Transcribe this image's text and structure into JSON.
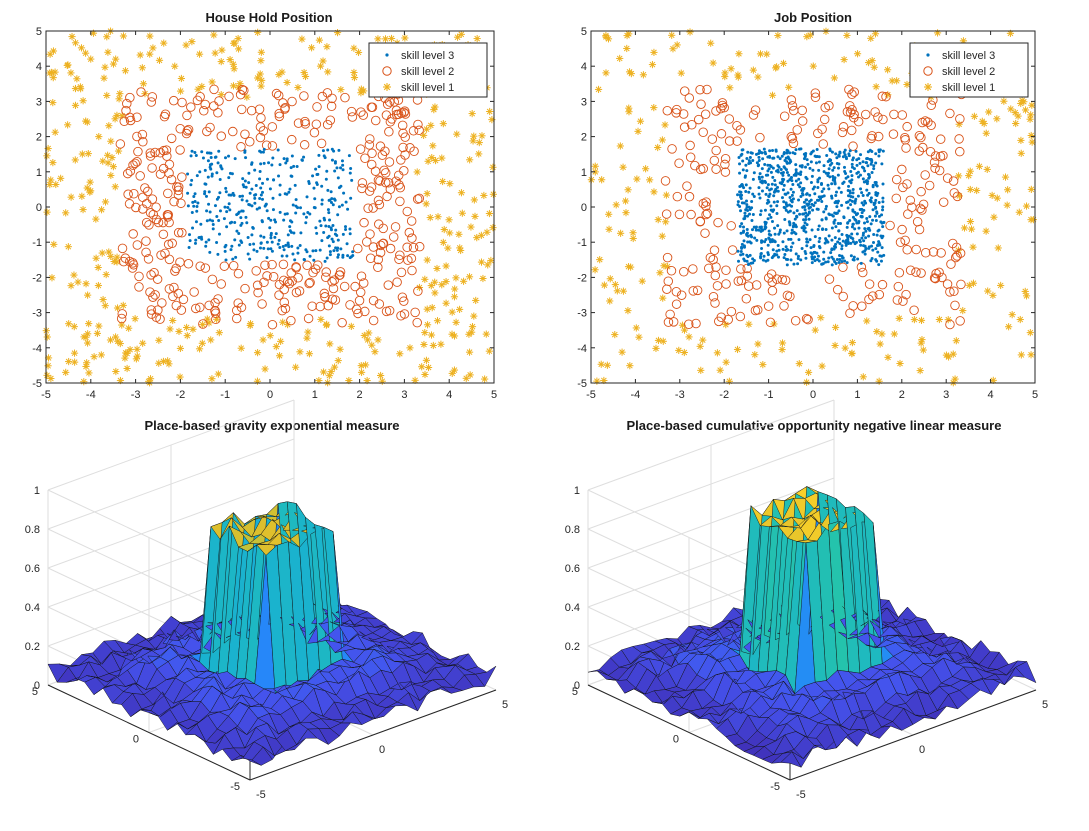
{
  "chart_data": [
    {
      "type": "scatter",
      "title": "House Hold Position",
      "xlim": [
        -5,
        5
      ],
      "ylim": [
        -5,
        5
      ],
      "xticks": [
        "-5",
        "-4",
        "-3",
        "-2",
        "-1",
        "0",
        "1",
        "2",
        "3",
        "4",
        "5"
      ],
      "yticks": [
        "-5",
        "-4",
        "-3",
        "-2",
        "-1",
        "0",
        "1",
        "2",
        "3",
        "4",
        "5"
      ],
      "legend_position": "top-right",
      "grid": false,
      "series": [
        {
          "name": "skill level 3",
          "marker": "dot",
          "color": "#0072BD",
          "n_points": 400,
          "region": "uniform in box x∈[-1.9,1.9], y∈[-1.5,1.6]"
        },
        {
          "name": "skill level 2",
          "marker": "circle",
          "color": "#D95319",
          "n_points": 380,
          "region": "ring |x|,|y| up to ~3.3 around skill level 3 box"
        },
        {
          "name": "skill level 1",
          "marker": "asterisk",
          "color": "#EDB120",
          "n_points": 400,
          "region": "outer area up to ±5 outside ~3.3"
        }
      ]
    },
    {
      "type": "scatter",
      "title": "Job Position",
      "xlim": [
        -5,
        5
      ],
      "ylim": [
        -5,
        5
      ],
      "xticks": [
        "-5",
        "-4",
        "-3",
        "-2",
        "-1",
        "0",
        "1",
        "2",
        "3",
        "4",
        "5"
      ],
      "yticks": [
        "-5",
        "-4",
        "-3",
        "-2",
        "-1",
        "0",
        "1",
        "2",
        "3",
        "4",
        "5"
      ],
      "legend_position": "top-right",
      "grid": false,
      "series": [
        {
          "name": "skill level 3",
          "marker": "dot",
          "color": "#0072BD",
          "n_points": 900,
          "region": "uniform in box x∈[-1.7,1.6], y∈[-1.6,1.6]"
        },
        {
          "name": "skill level 2",
          "marker": "circle",
          "color": "#D95319",
          "n_points": 260,
          "region": "ring around skill level 3 box out to ~3.3"
        },
        {
          "name": "skill level 1",
          "marker": "asterisk",
          "color": "#EDB120",
          "n_points": 260,
          "region": "outer area up to ±5"
        }
      ]
    },
    {
      "type": "surface",
      "title": "Place-based gravity exponential measure",
      "xlim": [
        -5,
        5
      ],
      "ylim": [
        -5,
        5
      ],
      "zlim": [
        0,
        1
      ],
      "zticks": [
        "0",
        "0.2",
        "0.4",
        "0.6",
        "0.8",
        "1"
      ],
      "x_ticks": [
        "-5",
        "0",
        "5"
      ],
      "y_ticks": [
        "-5",
        "0",
        "5"
      ],
      "plateau_height": 0.82,
      "base_height": 0.1,
      "grid": true,
      "colormap": "parula"
    },
    {
      "type": "surface",
      "title": "Place-based cumulative opportunity negative linear measure",
      "xlim": [
        -5,
        5
      ],
      "ylim": [
        -5,
        5
      ],
      "zlim": [
        0,
        1
      ],
      "zticks": [
        "0",
        "0.2",
        "0.4",
        "0.6",
        "0.8",
        "1"
      ],
      "x_ticks": [
        "-5",
        "0",
        "5"
      ],
      "y_ticks": [
        "-5",
        "0",
        "5"
      ],
      "plateau_height": 0.88,
      "base_height": 0.1,
      "grid": true,
      "colormap": "parula"
    }
  ]
}
